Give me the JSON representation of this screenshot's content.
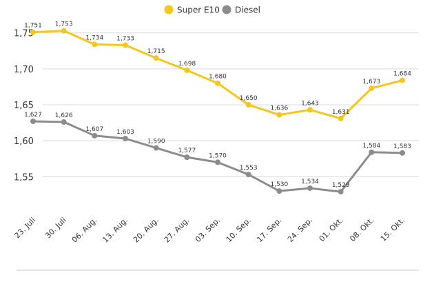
{
  "chart_data": {
    "type": "line",
    "categories": [
      "23. Juli",
      "30. Juli",
      "06. Aug.",
      "13. Aug.",
      "20. Aug.",
      "27. Aug.",
      "03. Sep.",
      "10. Sep.",
      "17. Sep.",
      "24. Sep.",
      "01. Okt.",
      "08. Okt.",
      "15. Okt."
    ],
    "series": [
      {
        "name": "Super E10",
        "color": "#f2c81e",
        "values": [
          1.751,
          1.753,
          1.734,
          1.733,
          1.715,
          1.698,
          1.68,
          1.65,
          1.636,
          1.643,
          1.631,
          1.673,
          1.684
        ],
        "labels": [
          "1,751",
          "1,753",
          "1,734",
          "1,733",
          "1,715",
          "1,698",
          "1,680",
          "1,650",
          "1,636",
          "1,643",
          "1,631",
          "1,673",
          "1,684"
        ]
      },
      {
        "name": "Diesel",
        "color": "#8c8c8c",
        "values": [
          1.627,
          1.626,
          1.607,
          1.603,
          1.59,
          1.577,
          1.57,
          1.553,
          1.53,
          1.534,
          1.529,
          1.584,
          1.583
        ],
        "labels": [
          "1,627",
          "1,626",
          "1,607",
          "1,603",
          "1,590",
          "1,577",
          "1,570",
          "1,553",
          "1,530",
          "1,534",
          "1,529",
          "1,584",
          "1,583"
        ]
      }
    ],
    "yticks": [
      1.55,
      1.6,
      1.65,
      1.7,
      1.75
    ],
    "ytick_labels": [
      "1,55",
      "1,60",
      "1,65",
      "1,70",
      "1,75"
    ],
    "ylim": [
      1.51,
      1.767
    ],
    "grid": true,
    "legend_position": "top-center"
  }
}
